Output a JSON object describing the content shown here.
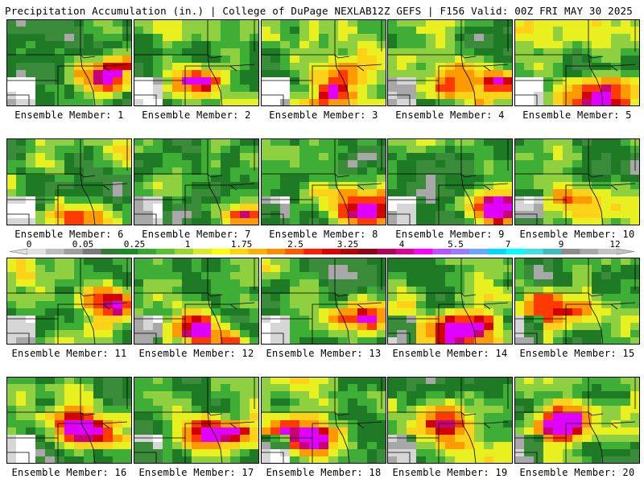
{
  "header": {
    "title": "Precipitation Accumulation (in.) | College of DuPage NEXLAB",
    "run_info": "12Z GEFS | F156 Valid: 00Z FRI MAY 30 2025"
  },
  "panels": [
    {
      "label": "Ensemble Member: 1"
    },
    {
      "label": "Ensemble Member: 2"
    },
    {
      "label": "Ensemble Member: 3"
    },
    {
      "label": "Ensemble Member: 4"
    },
    {
      "label": "Ensemble Member: 5"
    },
    {
      "label": "Ensemble Member: 6"
    },
    {
      "label": "Ensemble Member: 7"
    },
    {
      "label": "Ensemble Member: 8"
    },
    {
      "label": "Ensemble Member: 9"
    },
    {
      "label": "Ensemble Member: 10"
    },
    {
      "label": "Ensemble Member: 11"
    },
    {
      "label": "Ensemble Member: 12"
    },
    {
      "label": "Ensemble Member: 13"
    },
    {
      "label": "Ensemble Member: 14"
    },
    {
      "label": "Ensemble Member: 15"
    },
    {
      "label": "Ensemble Member: 16"
    },
    {
      "label": "Ensemble Member: 17"
    },
    {
      "label": "Ensemble Member: 18"
    },
    {
      "label": "Ensemble Member: 19"
    },
    {
      "label": "Ensemble Member: 20"
    }
  ],
  "colorbar": {
    "tick_labels": [
      "0",
      "0.05",
      "0.25",
      "1",
      "1.75",
      "2.5",
      "3.25",
      "4",
      "5.5",
      "7",
      "9",
      "12"
    ],
    "colors": [
      "#e0e0e0",
      "#bdbdbd",
      "#9e9e9e",
      "#7a7a7a",
      "#2e7d32",
      "#1b8a2a",
      "#36a832",
      "#59c22e",
      "#9bd62c",
      "#d8ea28",
      "#ffff00",
      "#ffd700",
      "#ffb000",
      "#ff8c00",
      "#ff5a00",
      "#ff1e00",
      "#e00000",
      "#b40000",
      "#8c0018",
      "#b4005a",
      "#dc0096",
      "#ff00ff",
      "#c050ff",
      "#9b7bff",
      "#6aa8ff",
      "#00d8ff",
      "#00ffff",
      "#40e0e0",
      "#3cbcbc",
      "#8c8c8c",
      "#a8a8a8",
      "#c4c4c4"
    ]
  }
}
